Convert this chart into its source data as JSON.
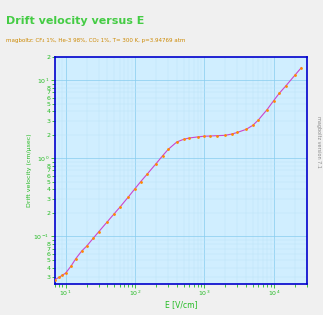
{
  "title": "Drift velocity versus E",
  "subtitle": "magboltz: CF₄ 1%, He-3 98%, CO₂ 1%, T= 300 K, p=3.94769 atm",
  "xlabel": "E [V/cm]",
  "ylabel": "Drift velocity (cm/μsec)",
  "title_color": "#44cc44",
  "subtitle_color": "#cc8800",
  "ylabel_color": "#22bb22",
  "xlabel_color": "#22bb22",
  "tick_color": "#22bb22",
  "fig_bg_color": "#f0f0f0",
  "plot_bg_color": "#d0eeff",
  "border_color": "#0000cc",
  "grid_major_color": "#88ccee",
  "grid_minor_color": "#b8e4f8",
  "line_color": "#cc44cc",
  "dot_color": "#ff8800",
  "watermark_color": "#888888",
  "xlim": [
    7,
    30000
  ],
  "ylim": [
    0.025,
    20
  ],
  "x_data": [
    7,
    8,
    9,
    10,
    12,
    14,
    17,
    20,
    25,
    30,
    40,
    50,
    60,
    80,
    100,
    120,
    150,
    200,
    250,
    300,
    400,
    500,
    600,
    800,
    1000,
    1200,
    1500,
    2000,
    2500,
    3000,
    4000,
    5000,
    6000,
    8000,
    10000,
    12000,
    15000,
    20000,
    25000
  ],
  "y_data": [
    0.028,
    0.03,
    0.032,
    0.034,
    0.042,
    0.052,
    0.065,
    0.075,
    0.095,
    0.115,
    0.155,
    0.195,
    0.235,
    0.32,
    0.41,
    0.5,
    0.63,
    0.85,
    1.08,
    1.3,
    1.62,
    1.75,
    1.82,
    1.88,
    1.92,
    1.93,
    1.95,
    1.97,
    2.05,
    2.15,
    2.35,
    2.65,
    3.1,
    4.2,
    5.5,
    6.8,
    8.5,
    11.5,
    14.5
  ],
  "figsize": [
    3.23,
    3.15
  ],
  "dpi": 100
}
